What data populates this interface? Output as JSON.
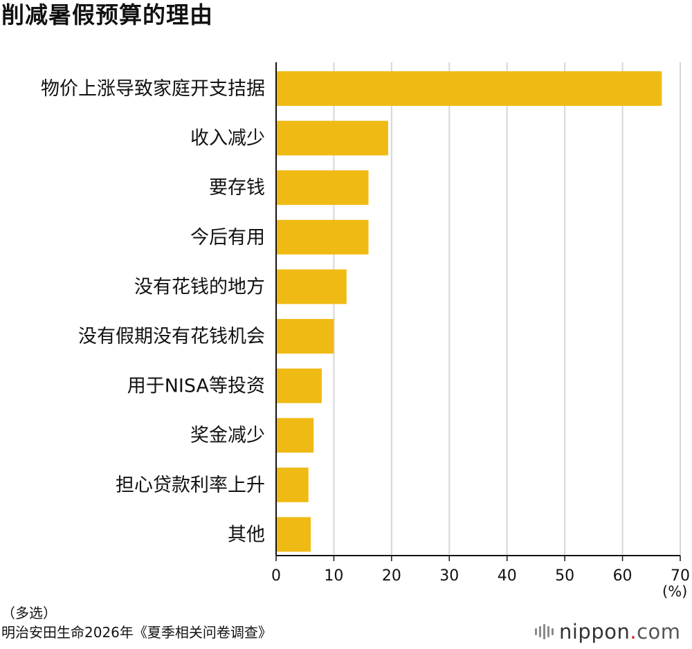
{
  "title": "削减暑假预算的理由",
  "notes": {
    "multi_select": "（多选）",
    "source": "明治安田生命2026年《夏季相关问卷调查》"
  },
  "brand": {
    "name": "nippon",
    "dot": ".",
    "tld": "com"
  },
  "colors": {
    "bar": "#F0BA14",
    "grid": "#D6D6D6",
    "axis": "#111111"
  },
  "chart_data": {
    "type": "bar",
    "orientation": "horizontal",
    "categories": [
      "物价上涨导致家庭开支拮据",
      "收入减少",
      "要存钱",
      "今后有用",
      "没有花钱的地方",
      "没有假期没有花钱机会",
      "用于NISA等投资",
      "奖金减少",
      "担心贷款利率上升",
      "其他"
    ],
    "values": [
      66.8,
      19.4,
      16.0,
      16.0,
      12.2,
      10.0,
      7.9,
      6.5,
      5.6,
      6.0
    ],
    "xlim": [
      0,
      70
    ],
    "xticks": [
      0,
      10,
      20,
      30,
      40,
      50,
      60,
      70
    ],
    "xlabel": "(%)",
    "grid": true
  }
}
